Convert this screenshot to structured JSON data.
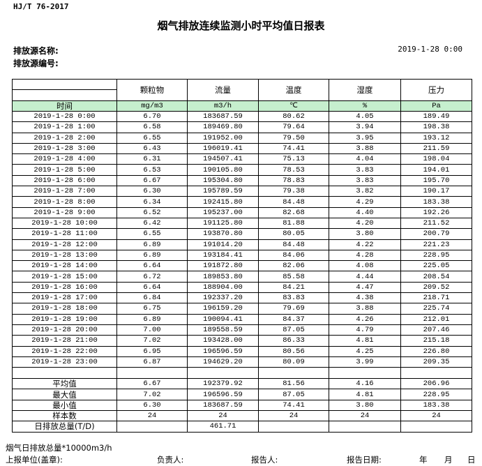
{
  "standard": "HJ/T  76-2017",
  "title": "烟气排放连续监测小时平均值日报表",
  "source_name_label": "排放源名称:",
  "source_code_label": "排放源编号:",
  "report_datetime": "2019-1-28  0:00",
  "table": {
    "headers": [
      "",
      "颗粒物",
      "流量",
      "温度",
      "湿度",
      "压力"
    ],
    "units": [
      "时间",
      "mg/m3",
      "m3/h",
      "℃",
      "%",
      "Pa"
    ],
    "rows": [
      [
        "2019-1-28  0:00",
        "6.70",
        "183687.59",
        "80.62",
        "4.05",
        "189.49"
      ],
      [
        "2019-1-28  1:00",
        "6.58",
        "189469.80",
        "79.64",
        "3.94",
        "198.38"
      ],
      [
        "2019-1-28  2:00",
        "6.55",
        "191952.00",
        "79.50",
        "3.95",
        "193.12"
      ],
      [
        "2019-1-28  3:00",
        "6.43",
        "196019.41",
        "74.41",
        "3.88",
        "211.59"
      ],
      [
        "2019-1-28  4:00",
        "6.31",
        "194507.41",
        "75.13",
        "4.04",
        "198.04"
      ],
      [
        "2019-1-28  5:00",
        "6.53",
        "190105.80",
        "78.53",
        "3.83",
        "194.01"
      ],
      [
        "2019-1-28  6:00",
        "6.67",
        "195304.80",
        "78.83",
        "3.83",
        "195.70"
      ],
      [
        "2019-1-28  7:00",
        "6.30",
        "195789.59",
        "79.38",
        "3.82",
        "190.17"
      ],
      [
        "2019-1-28  8:00",
        "6.34",
        "192415.80",
        "84.48",
        "4.29",
        "183.38"
      ],
      [
        "2019-1-28  9:00",
        "6.52",
        "195237.00",
        "82.68",
        "4.40",
        "192.26"
      ],
      [
        "2019-1-28 10:00",
        "6.42",
        "191125.80",
        "81.88",
        "4.20",
        "211.52"
      ],
      [
        "2019-1-28 11:00",
        "6.55",
        "193870.80",
        "80.05",
        "3.80",
        "200.79"
      ],
      [
        "2019-1-28 12:00",
        "6.89",
        "191014.20",
        "84.48",
        "4.22",
        "221.23"
      ],
      [
        "2019-1-28 13:00",
        "6.89",
        "193184.41",
        "84.06",
        "4.28",
        "228.95"
      ],
      [
        "2019-1-28 14:00",
        "6.64",
        "191872.80",
        "82.06",
        "4.08",
        "225.05"
      ],
      [
        "2019-1-28 15:00",
        "6.72",
        "189853.80",
        "85.58",
        "4.44",
        "208.54"
      ],
      [
        "2019-1-28 16:00",
        "6.64",
        "188904.00",
        "84.21",
        "4.47",
        "209.52"
      ],
      [
        "2019-1-28 17:00",
        "6.84",
        "192337.20",
        "83.83",
        "4.38",
        "218.71"
      ],
      [
        "2019-1-28 18:00",
        "6.75",
        "196159.20",
        "79.69",
        "3.88",
        "225.74"
      ],
      [
        "2019-1-28 19:00",
        "6.89",
        "190094.41",
        "84.37",
        "4.26",
        "212.01"
      ],
      [
        "2019-1-28 20:00",
        "7.00",
        "189558.59",
        "87.05",
        "4.79",
        "207.46"
      ],
      [
        "2019-1-28 21:00",
        "7.02",
        "193428.00",
        "86.33",
        "4.81",
        "215.18"
      ],
      [
        "2019-1-28 22:00",
        "6.95",
        "196596.59",
        "80.56",
        "4.25",
        "226.80"
      ],
      [
        "2019-1-28 23:00",
        "6.87",
        "194629.20",
        "80.09",
        "3.99",
        "209.35"
      ]
    ],
    "summary": [
      [
        "平均值",
        "6.67",
        "192379.92",
        "81.56",
        "4.16",
        "206.96"
      ],
      [
        "最大值",
        "7.02",
        "196596.59",
        "87.05",
        "4.81",
        "228.95"
      ],
      [
        "最小值",
        "6.30",
        "183687.59",
        "74.41",
        "3.80",
        "183.38"
      ],
      [
        "样本数",
        "24",
        "24",
        "24",
        "24",
        "24"
      ],
      [
        "日排放总量(T/D)",
        "",
        "461.71",
        "",
        "",
        ""
      ]
    ]
  },
  "footer": {
    "note": "烟气日排放总量*10000m3/h",
    "unit_label": "上报单位(盖章):",
    "responsible_label": "负责人:",
    "reporter_label": "报告人:",
    "date_label": "报告日期:",
    "year": "年",
    "month": "月",
    "day": "日"
  },
  "colors": {
    "units_row_bg": "#c6efce"
  }
}
